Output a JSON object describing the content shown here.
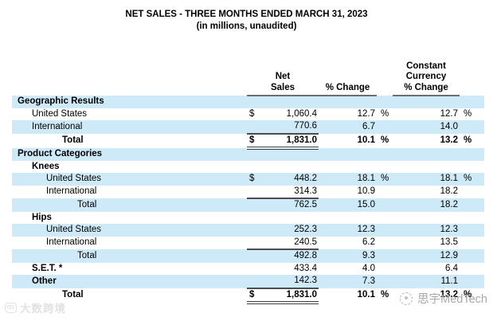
{
  "title": {
    "line1": "NET SALES - THREE MONTHS ENDED MARCH 31, 2023",
    "line2": "(in millions, unaudited)"
  },
  "colors": {
    "row_shade": "#cee9f8",
    "rule": "#4d4d4f",
    "header_rule": "#6d6e71",
    "watermark_left": "#e2e2e2",
    "watermark_right": "#a9a9a9"
  },
  "table": {
    "headers": {
      "net_sales_l1": "Net",
      "net_sales_l2": "Sales",
      "pct_change": "% Change",
      "cc_l1": "Constant",
      "cc_l2": "Currency",
      "cc_l3": "% Change"
    },
    "rows": [
      {
        "label": "Geographic Results",
        "indent": 0,
        "label_bold": true,
        "shaded": true
      },
      {
        "label": "United States",
        "indent": 1,
        "dollar": "$",
        "amount": "1,060.4",
        "pct": "12.7",
        "pct_sign": "%",
        "cc": "12.7",
        "cc_sign": "%"
      },
      {
        "label": "International",
        "indent": 1,
        "shaded": true,
        "amount": "770.6",
        "pct": "6.7",
        "cc": "14.0",
        "rule_below": "single"
      },
      {
        "label": "Total",
        "indent": 3,
        "bold": true,
        "dollar": "$",
        "amount": "1,831.0",
        "pct": "10.1",
        "pct_sign": "%",
        "cc": "13.2",
        "cc_sign": "%",
        "rule_below": "double"
      },
      {
        "label": "Product Categories",
        "indent": 0,
        "label_bold": true,
        "shaded": true
      },
      {
        "label": "Knees",
        "indent": 1,
        "label_bold": true
      },
      {
        "label": "United States",
        "indent": 2,
        "shaded": true,
        "dollar": "$",
        "amount": "448.2",
        "pct": "18.1",
        "pct_sign": "%",
        "cc": "18.1",
        "cc_sign": "%"
      },
      {
        "label": "International",
        "indent": 2,
        "amount": "314.3",
        "pct": "10.9",
        "cc": "18.2",
        "rule_below": "single"
      },
      {
        "label": "Total",
        "indent": 4,
        "shaded": true,
        "amount": "762.5",
        "pct": "15.0",
        "cc": "18.2"
      },
      {
        "label": "Hips",
        "indent": 1,
        "label_bold": true
      },
      {
        "label": "United States",
        "indent": 2,
        "shaded": true,
        "amount": "252.3",
        "pct": "12.3",
        "cc": "12.3"
      },
      {
        "label": "International",
        "indent": 2,
        "amount": "240.5",
        "pct": "6.2",
        "cc": "13.5",
        "rule_below": "single"
      },
      {
        "label": "Total",
        "indent": 4,
        "shaded": true,
        "amount": "492.8",
        "pct": "9.3",
        "cc": "12.9"
      },
      {
        "label": "S.E.T. *",
        "indent": 1,
        "label_bold": true,
        "amount": "433.4",
        "pct": "4.0",
        "cc": "6.4"
      },
      {
        "label": "Other",
        "indent": 1,
        "label_bold": true,
        "shaded": true,
        "amount": "142.3",
        "pct": "7.3",
        "cc": "11.1",
        "rule_below": "single"
      },
      {
        "label": "Total",
        "indent": 3,
        "bold": true,
        "dollar": "$",
        "amount": "1,831.0",
        "pct": "10.1",
        "pct_sign": "%",
        "cc": "13.2",
        "cc_sign": "%",
        "rule_below": "double"
      }
    ]
  },
  "watermarks": {
    "left_text": "大数跨境",
    "left_icon": "bigdata-logo-icon",
    "right_text": "思宇MedTech",
    "right_icon": "medtech-logo-icon"
  }
}
